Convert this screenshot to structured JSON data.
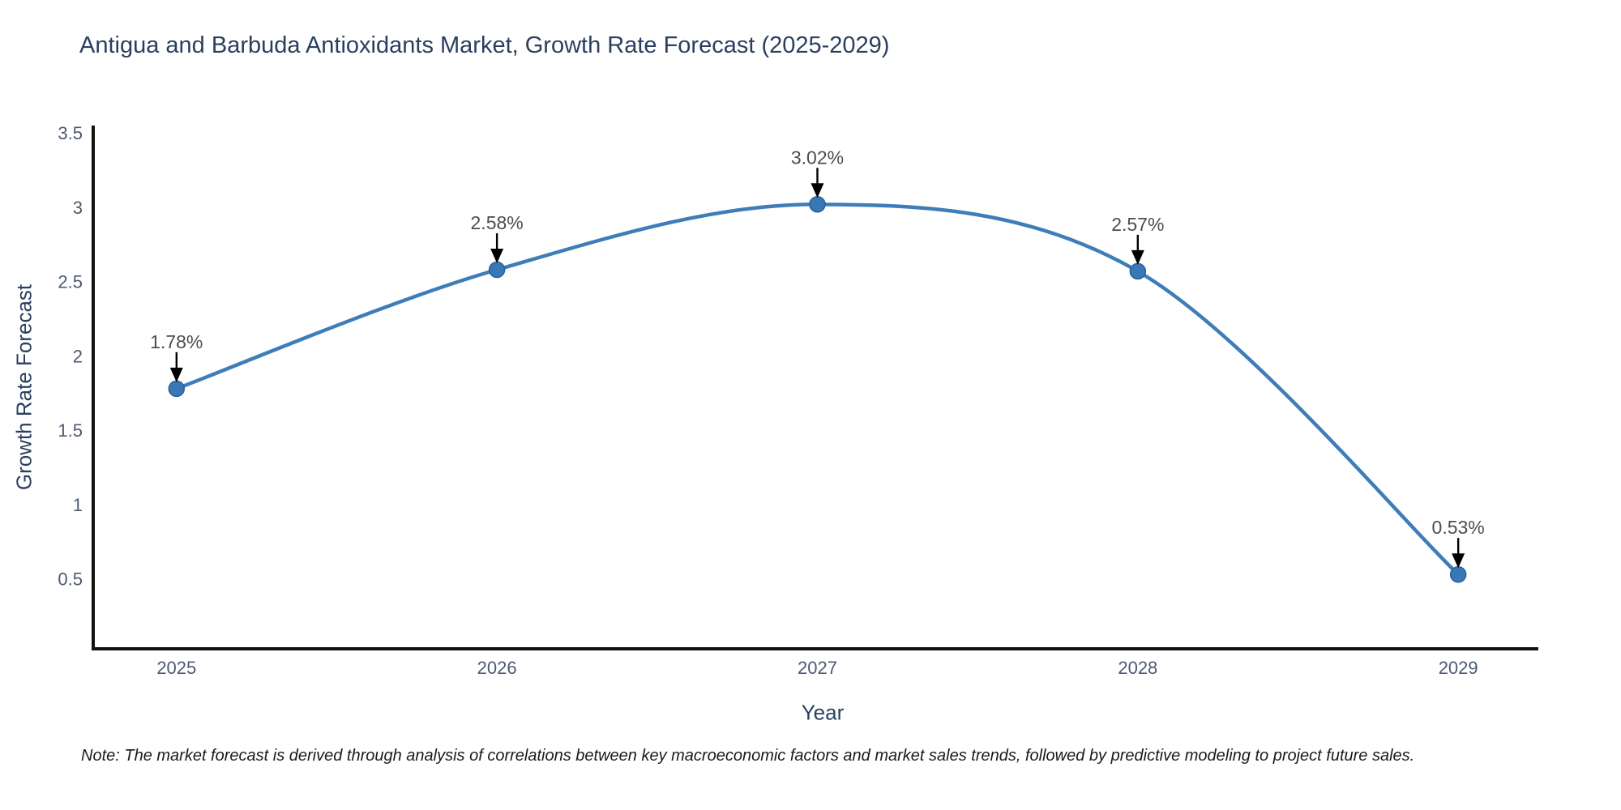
{
  "title": "Antigua and Barbuda Antioxidants Market, Growth Rate Forecast (2025-2029)",
  "note": "Note: The market forecast is derived through analysis of correlations between key macroeconomic factors and market sales trends, followed by predictive modeling to project future sales.",
  "chart_data": {
    "type": "line",
    "line_shape": "spline",
    "title": "Antigua and Barbuda Antioxidants Market, Growth Rate Forecast (2025-2029)",
    "xlabel": "Year",
    "ylabel": "Growth Rate Forecast",
    "x": [
      2025,
      2026,
      2027,
      2028,
      2029
    ],
    "y": [
      1.78,
      2.58,
      3.02,
      2.57,
      0.53
    ],
    "point_labels": [
      "1.78%",
      "2.58%",
      "3.02%",
      "2.57%",
      "0.53%"
    ],
    "xticks": [
      "2025",
      "2026",
      "2027",
      "2028",
      "2029"
    ],
    "yticks": [
      "0.5",
      "1",
      "1.5",
      "2",
      "2.5",
      "3",
      "3.5"
    ],
    "ytick_values": [
      0.5,
      1,
      1.5,
      2,
      2.5,
      3,
      3.5
    ],
    "xlim": [
      2024.74,
      2029.25
    ],
    "ylim": [
      0.03,
      3.55
    ],
    "grid": false,
    "legend": false,
    "annotations_arrowed": true,
    "colors": {
      "line": "#3e7db9",
      "marker_fill": "#3978b7",
      "marker_edge": "#2b6095",
      "axis_line": "#111111",
      "tick_text": "#4b5a73",
      "title_text": "#2a3f5f",
      "annotation_text": "#4d4d4d",
      "arrow": "#000000",
      "background": "#ffffff"
    }
  }
}
